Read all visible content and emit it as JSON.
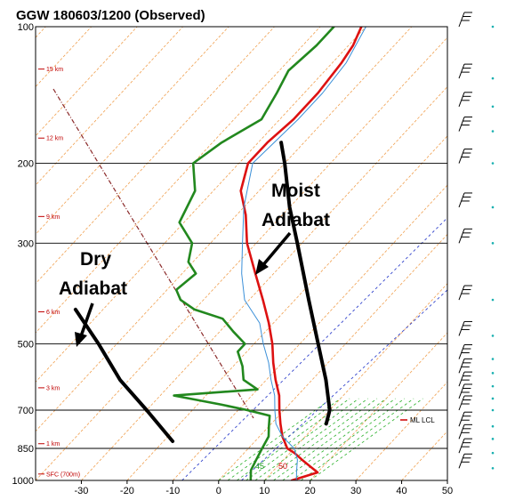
{
  "chart_data": {
    "type": "line",
    "title": "GGW  180603/1200  (Observed)",
    "station": "GGW",
    "x_axis": {
      "ticks": [
        -30,
        -20,
        -10,
        0,
        10,
        20,
        30,
        40,
        50
      ],
      "range": [
        -40,
        50
      ]
    },
    "y_axis": {
      "scale": "log",
      "ticks": [
        100,
        200,
        300,
        500,
        700,
        850,
        1000
      ],
      "range": [
        1000,
        100
      ],
      "grid": true
    },
    "height_labels": [
      "15 km",
      "12 km",
      "9 km",
      "6 km",
      "3 km",
      "1 km",
      "SFC (700m)"
    ],
    "annotations": {
      "moist_line1": "Moist",
      "moist_line2": "Adiabat",
      "dry_line1": "Dry",
      "dry_line2": "Adiabat"
    },
    "lcl_label": "ML  LCL",
    "mixing_ratio_label": "45",
    "theta_label": "50",
    "series": [
      {
        "role": "temperature",
        "color": "#dd1111",
        "points": [
          [
            1000,
            16
          ],
          [
            960,
            20
          ],
          [
            930,
            17
          ],
          [
            900,
            14
          ],
          [
            870,
            11
          ],
          [
            850,
            8.5
          ],
          [
            800,
            5
          ],
          [
            750,
            2
          ],
          [
            700,
            -1
          ],
          [
            650,
            -4
          ],
          [
            600,
            -8
          ],
          [
            550,
            -12
          ],
          [
            500,
            -16
          ],
          [
            450,
            -21
          ],
          [
            400,
            -27
          ],
          [
            350,
            -34
          ],
          [
            300,
            -42
          ],
          [
            260,
            -48
          ],
          [
            230,
            -54
          ],
          [
            200,
            -58
          ],
          [
            180,
            -58
          ],
          [
            160,
            -57
          ],
          [
            140,
            -57
          ],
          [
            120,
            -58
          ],
          [
            110,
            -59
          ],
          [
            100,
            -61
          ]
        ]
      },
      {
        "role": "dewpoint",
        "color": "#22881e",
        "points": [
          [
            1000,
            7
          ],
          [
            950,
            5
          ],
          [
            900,
            4
          ],
          [
            850,
            3
          ],
          [
            800,
            2
          ],
          [
            760,
            0
          ],
          [
            720,
            -2
          ],
          [
            700,
            -8
          ],
          [
            680,
            -15
          ],
          [
            650,
            -27
          ],
          [
            630,
            -10
          ],
          [
            600,
            -15
          ],
          [
            560,
            -18
          ],
          [
            520,
            -22
          ],
          [
            500,
            -22
          ],
          [
            470,
            -27
          ],
          [
            440,
            -32
          ],
          [
            420,
            -40
          ],
          [
            400,
            -45
          ],
          [
            380,
            -48
          ],
          [
            350,
            -47
          ],
          [
            330,
            -51
          ],
          [
            300,
            -54
          ],
          [
            270,
            -61
          ],
          [
            230,
            -64
          ],
          [
            200,
            -70
          ],
          [
            180,
            -68
          ],
          [
            160,
            -64
          ],
          [
            140,
            -66
          ],
          [
            125,
            -68
          ],
          [
            110,
            -67
          ],
          [
            100,
            -67
          ]
        ]
      },
      {
        "role": "virtual_temperature",
        "color": "#3a8fd8",
        "points": [
          [
            1000,
            17
          ],
          [
            950,
            15
          ],
          [
            900,
            13
          ],
          [
            850,
            10
          ],
          [
            800,
            5
          ],
          [
            750,
            1
          ],
          [
            700,
            -2
          ],
          [
            650,
            -5
          ],
          [
            600,
            -9
          ],
          [
            550,
            -13
          ],
          [
            500,
            -18
          ],
          [
            450,
            -23
          ],
          [
            400,
            -31
          ],
          [
            350,
            -37
          ],
          [
            300,
            -43
          ],
          [
            250,
            -50
          ],
          [
            200,
            -57
          ],
          [
            160,
            -56
          ],
          [
            140,
            -56
          ],
          [
            120,
            -57
          ],
          [
            100,
            -60
          ]
        ]
      },
      {
        "role": "moist_adiabat",
        "color": "#000000",
        "points": [
          [
            750,
            12
          ],
          [
            700,
            10
          ],
          [
            600,
            3
          ],
          [
            500,
            -6
          ],
          [
            400,
            -17
          ],
          [
            300,
            -31
          ],
          [
            250,
            -40
          ],
          [
            200,
            -50
          ],
          [
            180,
            -55
          ]
        ]
      },
      {
        "role": "dry_adiabat",
        "color": "#000000",
        "points": [
          [
            820,
            -18
          ],
          [
            700,
            -30
          ],
          [
            600,
            -42
          ],
          [
            500,
            -54
          ],
          [
            420,
            -66
          ]
        ]
      }
    ],
    "wind_profile": "barbs along right edge",
    "grid": true
  }
}
